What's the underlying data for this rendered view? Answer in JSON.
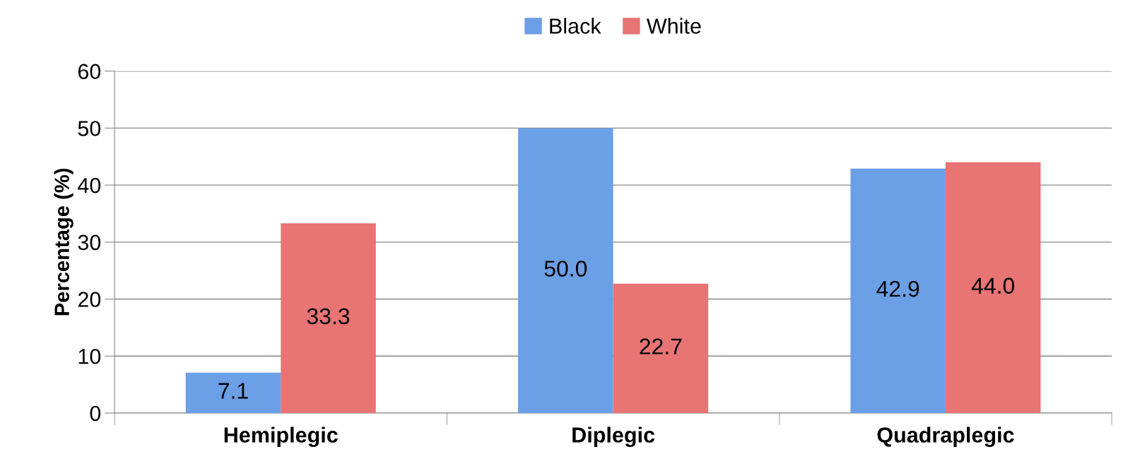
{
  "chart_data": {
    "type": "bar",
    "ylabel": "Percentage (%)",
    "categories": [
      "Hemiplegic",
      "Diplegic",
      "Quadraplegic"
    ],
    "series": [
      {
        "name": "Black",
        "color": "#6b9fe6",
        "values": [
          7.1,
          50.0,
          42.9
        ],
        "value_labels": [
          "7.1",
          "50.0",
          "42.9"
        ]
      },
      {
        "name": "White",
        "color": "#e87474",
        "values": [
          33.3,
          22.7,
          44.0
        ],
        "value_labels": [
          "33.3",
          "22.7",
          "44.0"
        ]
      }
    ],
    "ylim": [
      0,
      60
    ],
    "yticks": [
      0,
      10,
      20,
      30,
      40,
      50,
      60
    ],
    "grid": "y",
    "legend": "top"
  }
}
